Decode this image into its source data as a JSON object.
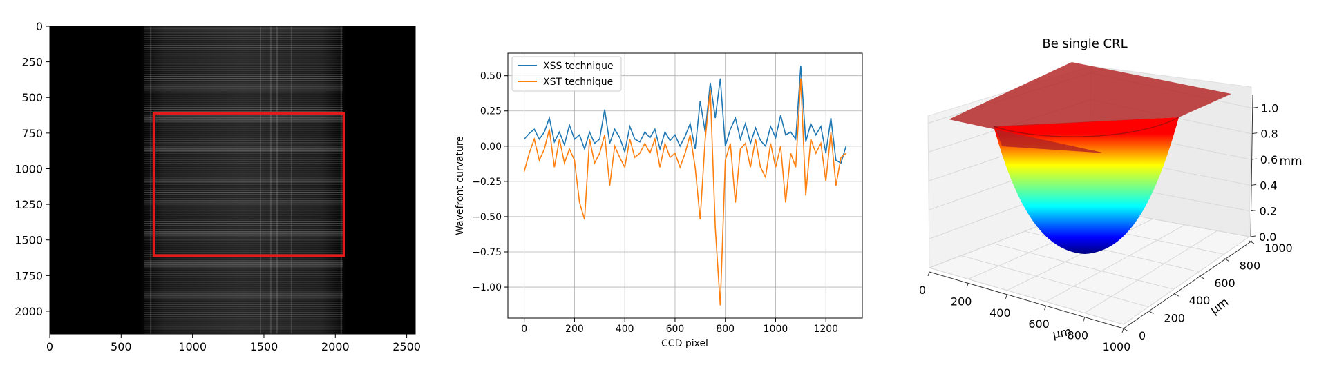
{
  "chart_data": [
    {
      "type": "heatmap",
      "colormap": "gray",
      "xlim": [
        0,
        2560
      ],
      "ylim": [
        2160,
        0
      ],
      "xticks": [
        0,
        500,
        1000,
        1500,
        2000,
        2500
      ],
      "yticks": [
        0,
        250,
        500,
        750,
        1000,
        1250,
        1500,
        1750,
        2000
      ],
      "xtick_labels": [
        "0",
        "500",
        "1000",
        "1500",
        "2000",
        "2500"
      ],
      "ytick_labels": [
        "0",
        "250",
        "500",
        "750",
        "1000",
        "1250",
        "1500",
        "1750",
        "2000"
      ],
      "bright_region_x": [
        630,
        2080
      ],
      "roi": {
        "x": [
          730,
          2060
        ],
        "y": [
          610,
          1610
        ],
        "color": "#e31a1c"
      }
    },
    {
      "type": "line",
      "xlabel": "CCD pixel",
      "ylabel": "Wavefront curvature",
      "xlim": [
        -65,
        1345
      ],
      "ylim": [
        -1.22,
        0.66
      ],
      "xticks": [
        0,
        200,
        400,
        600,
        800,
        1000,
        1200
      ],
      "yticks": [
        0.5,
        0.25,
        0.0,
        -0.25,
        -0.5,
        -0.75,
        -1.0
      ],
      "xtick_labels": [
        "0",
        "200",
        "400",
        "600",
        "800",
        "1000",
        "1200"
      ],
      "ytick_labels": [
        "0.50",
        "0.25",
        "0.00",
        "−0.25",
        "−0.50",
        "−0.75",
        "−1.00"
      ],
      "grid": true,
      "legend": "top-left",
      "x": [
        0,
        20,
        40,
        60,
        80,
        100,
        120,
        140,
        160,
        180,
        200,
        220,
        240,
        260,
        280,
        300,
        320,
        340,
        360,
        380,
        400,
        420,
        440,
        460,
        480,
        500,
        520,
        540,
        560,
        580,
        600,
        620,
        640,
        660,
        680,
        700,
        720,
        740,
        760,
        780,
        800,
        820,
        840,
        860,
        880,
        900,
        920,
        940,
        960,
        980,
        1000,
        1020,
        1040,
        1060,
        1080,
        1100,
        1120,
        1140,
        1160,
        1180,
        1200,
        1220,
        1240,
        1260,
        1280
      ],
      "series": [
        {
          "name": "XSS technique",
          "color": "#1f77b4",
          "values": [
            0.05,
            0.09,
            0.12,
            0.05,
            0.1,
            0.2,
            0.03,
            0.1,
            0.01,
            0.15,
            0.05,
            0.08,
            -0.02,
            0.1,
            0.02,
            0.05,
            0.26,
            0.02,
            0.12,
            0.06,
            -0.04,
            0.14,
            0.05,
            0.03,
            0.1,
            0.06,
            0.12,
            -0.02,
            0.1,
            0.04,
            0.08,
            0.0,
            0.07,
            0.16,
            -0.02,
            0.32,
            0.1,
            0.45,
            0.2,
            0.48,
            0.0,
            0.12,
            0.2,
            0.05,
            0.16,
            0.02,
            0.13,
            0.04,
            0.0,
            0.14,
            0.06,
            0.22,
            0.08,
            0.1,
            0.05,
            0.57,
            0.03,
            0.16,
            0.08,
            0.14,
            -0.05,
            0.2,
            -0.1,
            -0.12,
            0.0
          ]
        },
        {
          "name": "XST technique",
          "color": "#ff7f0e",
          "values": [
            -0.18,
            -0.05,
            0.05,
            -0.1,
            -0.02,
            0.12,
            -0.15,
            0.05,
            -0.12,
            -0.02,
            -0.1,
            -0.4,
            -0.52,
            0.05,
            -0.12,
            -0.05,
            0.08,
            -0.28,
            0.0,
            -0.08,
            -0.15,
            0.05,
            -0.08,
            -0.05,
            0.02,
            -0.05,
            0.05,
            -0.15,
            0.02,
            -0.08,
            -0.05,
            -0.15,
            -0.05,
            0.08,
            -0.15,
            -0.52,
            0.05,
            0.4,
            -0.58,
            -1.13,
            -0.1,
            0.02,
            -0.4,
            -0.02,
            0.02,
            -0.15,
            0.05,
            -0.15,
            -0.22,
            0.02,
            -0.15,
            0.0,
            -0.4,
            -0.05,
            -0.15,
            0.48,
            -0.35,
            0.05,
            -0.05,
            0.02,
            -0.25,
            0.1,
            -0.28,
            -0.08,
            -0.05
          ]
        }
      ]
    },
    {
      "type": "surface",
      "title": "Be single CRL",
      "colormap": "jet",
      "xlabel": "μm",
      "ylabel": "μm",
      "zlabel": "mm",
      "xlim": [
        0,
        1000
      ],
      "ylim": [
        0,
        1000
      ],
      "zlim": [
        0,
        1.05
      ],
      "xticks": [
        0,
        200,
        400,
        600,
        800,
        1000
      ],
      "yticks": [
        0,
        200,
        400,
        600,
        800,
        1000
      ],
      "zticks": [
        0.0,
        0.2,
        0.4,
        0.6,
        0.8,
        1.0
      ],
      "xtick_labels": [
        "0",
        "200",
        "400",
        "600",
        "800",
        "1000"
      ],
      "ytick_labels": [
        "0",
        "200",
        "400",
        "600",
        "800",
        "1000"
      ],
      "ztick_labels": [
        "0.0",
        "0.2",
        "0.4",
        "0.6",
        "0.8",
        "1.0"
      ],
      "plateau_color": "#b22222"
    }
  ]
}
